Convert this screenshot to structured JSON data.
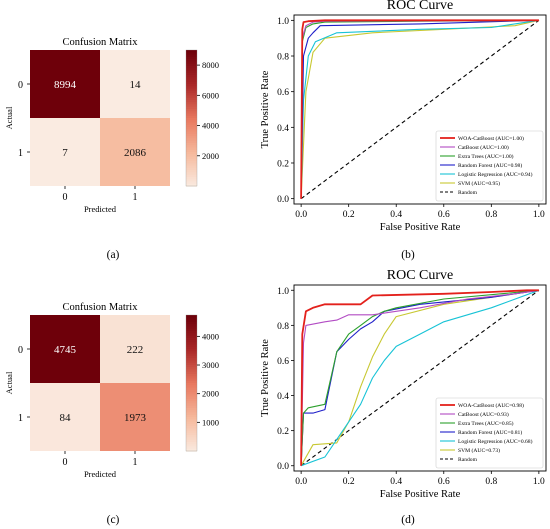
{
  "panel_labels": [
    "(a)",
    "(b)",
    "(c)",
    "(d)"
  ],
  "chart_data": [
    {
      "type": "heatmap",
      "title": "Confusion Matrix",
      "xlabel": "Predicted",
      "ylabel": "Actual",
      "x_categories": [
        "0",
        "1"
      ],
      "y_categories": [
        "0",
        "1"
      ],
      "values": [
        [
          8994,
          14
        ],
        [
          7,
          2086
        ]
      ],
      "colorbar_ticks": [
        "8000",
        "6000",
        "4000",
        "2000"
      ],
      "colorbar_tick_values": [
        8000,
        6000,
        4000,
        2000
      ],
      "colorbar_range": [
        0,
        9000
      ]
    },
    {
      "type": "line",
      "title": "ROC Curve",
      "xlabel": "False Positive Rate",
      "ylabel": "True Positive Rate",
      "xlim": [
        -0.03,
        1.03
      ],
      "ylim": [
        -0.03,
        1.03
      ],
      "xticks": [
        "0.0",
        "0.2",
        "0.4",
        "0.6",
        "0.8",
        "1.0"
      ],
      "yticks": [
        "0.0",
        "0.2",
        "0.4",
        "0.6",
        "0.8",
        "1.0"
      ],
      "legend_position": "bottom-right",
      "series": [
        {
          "name": "WOA-CatBoost (AUC=1.00)",
          "color": "#e3211c",
          "x": [
            0,
            0.005,
            0.01,
            0.03,
            0.1,
            1
          ],
          "y": [
            0,
            0.95,
            0.99,
            0.995,
            1,
            1
          ]
        },
        {
          "name": "CatBoost (AUC=1.00)",
          "color": "#b24cc4",
          "x": [
            0,
            0.005,
            0.02,
            0.05,
            0.1,
            1
          ],
          "y": [
            0,
            0.9,
            0.97,
            0.99,
            0.995,
            1
          ]
        },
        {
          "name": "Extra Trees (AUC=1.00)",
          "color": "#2ca02c",
          "x": [
            0,
            0.005,
            0.02,
            0.05,
            0.1,
            0.5,
            1
          ],
          "y": [
            0,
            0.88,
            0.96,
            0.98,
            0.99,
            0.995,
            1
          ]
        },
        {
          "name": "Random Forest (AUC=0.98)",
          "color": "#1f1fc9",
          "x": [
            0,
            0.01,
            0.03,
            0.05,
            0.08,
            0.5,
            1
          ],
          "y": [
            0,
            0.8,
            0.9,
            0.93,
            0.97,
            0.98,
            1
          ]
        },
        {
          "name": "Logistic Regression (AUC=0.94)",
          "color": "#17c3d6",
          "x": [
            0,
            0.01,
            0.03,
            0.06,
            0.15,
            0.5,
            0.8,
            1
          ],
          "y": [
            0,
            0.55,
            0.8,
            0.88,
            0.93,
            0.95,
            0.96,
            1
          ]
        },
        {
          "name": "SVM (AUC=0.95)",
          "color": "#c8c832",
          "x": [
            0,
            0.02,
            0.05,
            0.1,
            0.3,
            0.6,
            0.9,
            1
          ],
          "y": [
            0,
            0.6,
            0.82,
            0.9,
            0.93,
            0.95,
            0.97,
            1
          ]
        },
        {
          "name": "Random",
          "color": "#000000",
          "dashed": true,
          "x": [
            0,
            1
          ],
          "y": [
            0,
            1
          ]
        }
      ]
    },
    {
      "type": "heatmap",
      "title": "Confusion Matrix",
      "xlabel": "Predicted",
      "ylabel": "Actual",
      "x_categories": [
        "0",
        "1"
      ],
      "y_categories": [
        "0",
        "1"
      ],
      "values": [
        [
          4745,
          222
        ],
        [
          84,
          1973
        ]
      ],
      "colorbar_ticks": [
        "4000",
        "3000",
        "2000",
        "1000"
      ],
      "colorbar_tick_values": [
        4000,
        3000,
        2000,
        1000
      ],
      "colorbar_range": [
        0,
        4745
      ]
    },
    {
      "type": "line",
      "title": "ROC Curve",
      "xlabel": "False Positive Rate",
      "ylabel": "True Positive Rate",
      "xlim": [
        -0.03,
        1.03
      ],
      "ylim": [
        -0.03,
        1.03
      ],
      "xticks": [
        "0.0",
        "0.2",
        "0.4",
        "0.6",
        "0.8",
        "1.0"
      ],
      "yticks": [
        "0.0",
        "0.2",
        "0.4",
        "0.6",
        "0.8",
        "1.0"
      ],
      "legend_position": "bottom-right",
      "series": [
        {
          "name": "WOA-CatBoost (AUC=0.98)",
          "color": "#e3211c",
          "x": [
            0,
            0.005,
            0.02,
            0.05,
            0.1,
            0.25,
            0.3,
            0.6,
            0.8,
            0.95,
            1
          ],
          "y": [
            0,
            0.75,
            0.88,
            0.9,
            0.92,
            0.92,
            0.97,
            0.98,
            0.99,
            1,
            1
          ]
        },
        {
          "name": "CatBoost (AUC=0.93)",
          "color": "#b24cc4",
          "x": [
            0,
            0.01,
            0.02,
            0.1,
            0.15,
            0.2,
            0.3,
            0.5,
            0.7,
            0.9,
            1
          ],
          "y": [
            0,
            0.7,
            0.8,
            0.82,
            0.83,
            0.86,
            0.86,
            0.9,
            0.95,
            0.98,
            1
          ]
        },
        {
          "name": "Extra Trees (AUC=0.85)",
          "color": "#2ca02c",
          "x": [
            0,
            0.01,
            0.03,
            0.1,
            0.15,
            0.2,
            0.25,
            0.3,
            0.35,
            0.4,
            0.6,
            1
          ],
          "y": [
            0,
            0.3,
            0.33,
            0.35,
            0.65,
            0.75,
            0.8,
            0.85,
            0.88,
            0.9,
            0.95,
            1
          ]
        },
        {
          "name": "Random Forest (AUC=0.81)",
          "color": "#1f1fc9",
          "x": [
            0,
            0.01,
            0.05,
            0.1,
            0.15,
            0.2,
            0.25,
            0.3,
            0.35,
            0.5,
            0.8,
            1
          ],
          "y": [
            0,
            0.3,
            0.3,
            0.32,
            0.65,
            0.72,
            0.78,
            0.82,
            0.88,
            0.92,
            0.96,
            1
          ]
        },
        {
          "name": "Logistic Regression (AUC=0.68)",
          "color": "#17c3d6",
          "x": [
            0,
            0.1,
            0.15,
            0.2,
            0.25,
            0.3,
            0.35,
            0.4,
            0.5,
            0.6,
            0.8,
            1
          ],
          "y": [
            0,
            0.05,
            0.15,
            0.25,
            0.35,
            0.5,
            0.6,
            0.68,
            0.75,
            0.82,
            0.9,
            1
          ]
        },
        {
          "name": "SVM (AUC=0.73)",
          "color": "#c8c832",
          "x": [
            0,
            0.05,
            0.15,
            0.2,
            0.25,
            0.3,
            0.35,
            0.4,
            0.6,
            0.8,
            1
          ],
          "y": [
            0,
            0.12,
            0.13,
            0.25,
            0.45,
            0.62,
            0.75,
            0.85,
            0.92,
            0.96,
            1
          ]
        },
        {
          "name": "Random",
          "color": "#000000",
          "dashed": true,
          "x": [
            0,
            1
          ],
          "y": [
            0,
            1
          ]
        }
      ]
    }
  ]
}
